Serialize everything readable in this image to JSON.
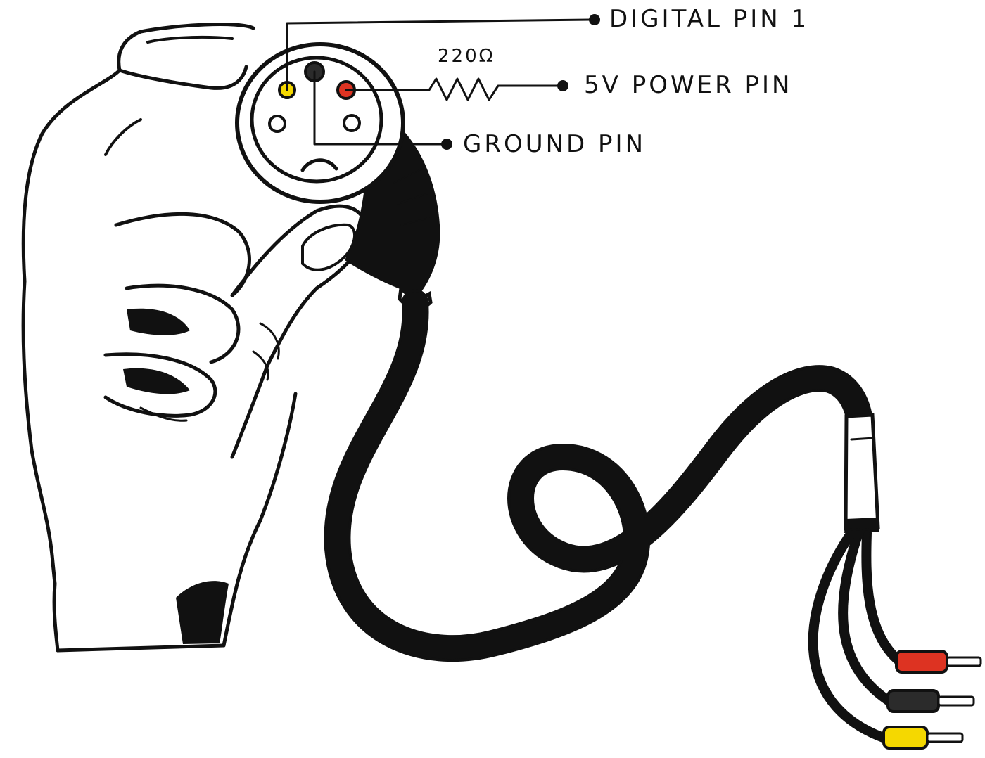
{
  "labels": {
    "digital_pin": "DIGITAL PIN 1",
    "power_pin": "5V POWER PIN",
    "ground_pin": "GROUND PIN",
    "resistor": "220Ω"
  },
  "colors": {
    "digital_wire": "#f5d800",
    "ground_wire": "#2b2b2b",
    "power_wire": "#dd3322",
    "ink": "#111111"
  }
}
